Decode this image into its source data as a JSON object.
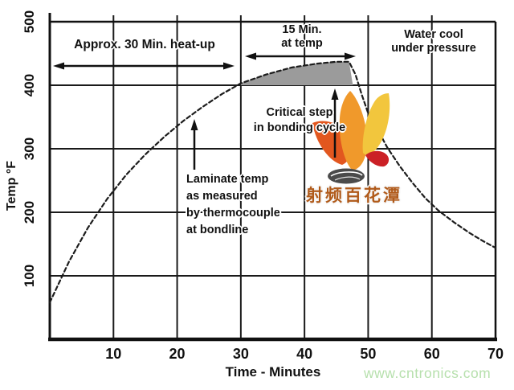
{
  "chart_data": {
    "type": "line",
    "xlabel": "Time - Minutes",
    "ylabel": "Temp °F",
    "x_ticks": [
      10,
      20,
      30,
      40,
      50,
      60,
      70
    ],
    "y_ticks": [
      100,
      200,
      300,
      400,
      500
    ],
    "xlim": [
      0,
      70
    ],
    "ylim": [
      0,
      500
    ],
    "grid": true,
    "legend_position": "none",
    "series": [
      {
        "name": "Laminate temp as measured by thermocouple at bondline",
        "style": "dashed",
        "points": [
          [
            0,
            58
          ],
          [
            3,
            122
          ],
          [
            6,
            176
          ],
          [
            9,
            221
          ],
          [
            12,
            259
          ],
          [
            15,
            291
          ],
          [
            18,
            319
          ],
          [
            21,
            344
          ],
          [
            24,
            366
          ],
          [
            27,
            386
          ],
          [
            30,
            403
          ],
          [
            34,
            417
          ],
          [
            38,
            428
          ],
          [
            42,
            434
          ],
          [
            45,
            437
          ],
          [
            47,
            437
          ],
          [
            48,
            417
          ],
          [
            49,
            385
          ],
          [
            50,
            356
          ],
          [
            51.5,
            330
          ],
          [
            53,
            302
          ],
          [
            55,
            272
          ],
          [
            57,
            246
          ],
          [
            59,
            222
          ],
          [
            61,
            203
          ],
          [
            63.5,
            184
          ],
          [
            66,
            167
          ],
          [
            68,
            155
          ],
          [
            70,
            144
          ]
        ]
      }
    ],
    "shaded_region": {
      "label": "15 Min. at temp",
      "from_min": 30,
      "to_min": 47.6,
      "baseline_F": 400
    },
    "annotations": {
      "heatup": "Approx. 30 Min. heat-up",
      "at_temp_1": "15 Min.",
      "at_temp_2": "at temp",
      "water_1": "Water cool",
      "water_2": "under pressure",
      "critical_1": "Critical step",
      "critical_2": "in bonding cycle",
      "laminate_1": "Laminate temp",
      "laminate_2": "as measured",
      "laminate_3": "by thermocouple",
      "laminate_4": "at bondline"
    }
  },
  "watermark": {
    "logo_text": "射频百花潭",
    "site_text": "www.cntronics.com"
  },
  "colors": {
    "curve": "#1c1c1c",
    "grid": "#1a1a1a",
    "region": "#9b9b9b",
    "petal_left": "#e2571f",
    "petal_center": "#f0992b",
    "petal_right": "#f2c63d",
    "swoosh": "#cb2026",
    "ellipse": "#4b4b4b",
    "logo_text": "#b05a1a",
    "site_text": "#b7e0ad"
  }
}
